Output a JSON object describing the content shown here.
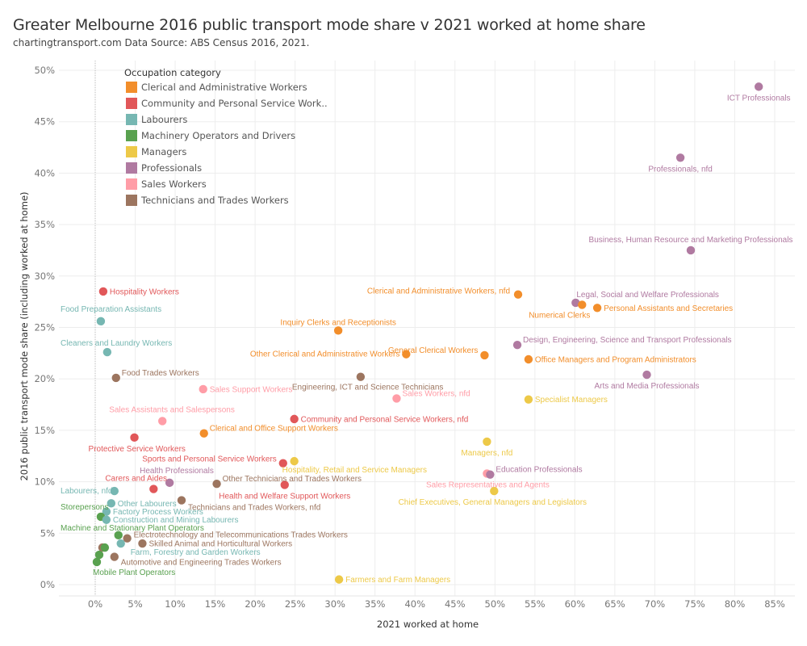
{
  "header": {
    "title": "Greater Melbourne 2016 public transport mode share v 2021 worked at home share",
    "subtitle": "chartingtransport.com  Data Source: ABS Census 2016, 2021."
  },
  "chart_data": {
    "type": "scatter",
    "title": "Greater Melbourne 2016 public transport mode share v 2021 worked at home share",
    "subtitle": "chartingtransport.com  Data Source: ABS Census 2016, 2021.",
    "xlabel": "2021 worked at home",
    "ylabel": "2016 public transport mode share (including worked at home)",
    "xlim": [
      -4.5,
      87.5
    ],
    "ylim": [
      -1,
      51
    ],
    "x_ticks": [
      0,
      5,
      10,
      15,
      20,
      25,
      30,
      35,
      40,
      45,
      50,
      55,
      60,
      65,
      70,
      75,
      80,
      85
    ],
    "x_tick_labels": [
      "0%",
      "5%",
      "10%",
      "15%",
      "20%",
      "25%",
      "30%",
      "35%",
      "40%",
      "45%",
      "50%",
      "55%",
      "60%",
      "65%",
      "70%",
      "75%",
      "80%",
      "85%"
    ],
    "y_ticks": [
      0,
      5,
      10,
      15,
      20,
      25,
      30,
      35,
      40,
      45,
      50
    ],
    "y_tick_labels": [
      "0%",
      "5%",
      "10%",
      "15%",
      "20%",
      "25%",
      "30%",
      "35%",
      "40%",
      "45%",
      "50%"
    ],
    "grid": true,
    "legend": {
      "title": "Occupation category",
      "placement": "top-left",
      "entries": [
        {
          "name": "Clerical and Administrative Workers",
          "label": "Clerical and Administrative Workers",
          "color": "#f28e2b"
        },
        {
          "name": "Community and Personal Service Workers",
          "label": "Community and Personal Service Work..",
          "color": "#e15759"
        },
        {
          "name": "Labourers",
          "label": "Labourers",
          "color": "#76b7b2"
        },
        {
          "name": "Machinery Operators and Drivers",
          "label": "Machinery Operators and Drivers",
          "color": "#59a14f"
        },
        {
          "name": "Managers",
          "label": "Managers",
          "color": "#edc948"
        },
        {
          "name": "Professionals",
          "label": "Professionals",
          "color": "#b07aa1"
        },
        {
          "name": "Sales Workers",
          "label": "Sales Workers",
          "color": "#ff9da7"
        },
        {
          "name": "Technicians and Trades Workers",
          "label": "Technicians and Trades Workers",
          "color": "#9c755f"
        }
      ]
    },
    "points": [
      {
        "label": "ICT Professionals",
        "category": "Professionals",
        "x": 83.0,
        "y": 48.4,
        "lpos": "below"
      },
      {
        "label": "Professionals, nfd",
        "category": "Professionals",
        "x": 73.2,
        "y": 41.5,
        "lpos": "below"
      },
      {
        "label": "Business, Human Resource and Marketing Professionals",
        "category": "Professionals",
        "x": 74.5,
        "y": 32.5,
        "lpos": "above"
      },
      {
        "label": "Clerical and Administrative Workers, nfd",
        "category": "Clerical and Administrative Workers",
        "x": 52.9,
        "y": 28.2,
        "lpos": "left-up"
      },
      {
        "label": "Legal, Social and Welfare Professionals",
        "category": "Professionals",
        "x": 60.1,
        "y": 27.4,
        "lpos": "right-up"
      },
      {
        "label": "Numerical Clerks",
        "category": "Clerical and Administrative Workers",
        "x": 60.9,
        "y": 27.2,
        "lpos": "below-left"
      },
      {
        "label": "Personal Assistants and Secretaries",
        "category": "Clerical and Administrative Workers",
        "x": 62.8,
        "y": 26.9,
        "lpos": "right"
      },
      {
        "label": "Inquiry Clerks and Receptionists",
        "category": "Clerical and Administrative Workers",
        "x": 30.4,
        "y": 24.7,
        "lpos": "above"
      },
      {
        "label": "Other Clerical and Administrative Workers",
        "category": "Clerical and Administrative Workers",
        "x": 38.9,
        "y": 22.4,
        "lpos": "left"
      },
      {
        "label": "General Clerical Workers",
        "category": "Clerical and Administrative Workers",
        "x": 48.7,
        "y": 22.3,
        "lpos": "left-up"
      },
      {
        "label": "Design, Engineering, Science and Transport Professionals",
        "category": "Professionals",
        "x": 52.8,
        "y": 23.3,
        "lpos": "right-up"
      },
      {
        "label": "Office Managers and Program Administrators",
        "category": "Clerical and Administrative Workers",
        "x": 54.2,
        "y": 21.9,
        "lpos": "right"
      },
      {
        "label": "Arts and Media Professionals",
        "category": "Professionals",
        "x": 69.0,
        "y": 20.4,
        "lpos": "below"
      },
      {
        "label": "Hospitality Workers",
        "category": "Community and Personal Service Workers",
        "x": 1.0,
        "y": 28.5,
        "lpos": "right"
      },
      {
        "label": "Food Preparation Assistants",
        "category": "Labourers",
        "x": 0.7,
        "y": 25.6,
        "lpos": "above"
      },
      {
        "label": "Cleaners and Laundry Workers",
        "category": "Labourers",
        "x": 1.5,
        "y": 22.6,
        "lpos": "above"
      },
      {
        "label": "Food Trades Workers",
        "category": "Technicians and Trades Workers",
        "x": 2.6,
        "y": 20.1,
        "lpos": "right-up"
      },
      {
        "label": "Sales Support Workers",
        "category": "Sales Workers",
        "x": 13.5,
        "y": 19.0,
        "lpos": "right"
      },
      {
        "label": "Engineering, ICT and Science Technicians",
        "category": "Technicians and Trades Workers",
        "x": 33.2,
        "y": 20.2,
        "lpos": "below"
      },
      {
        "label": "Sales Workers, nfd",
        "category": "Sales Workers",
        "x": 37.7,
        "y": 18.1,
        "lpos": "right-up"
      },
      {
        "label": "Specialist Managers",
        "category": "Managers",
        "x": 54.2,
        "y": 18.0,
        "lpos": "right"
      },
      {
        "label": "Sales Assistants and Salespersons",
        "category": "Sales Workers",
        "x": 8.4,
        "y": 15.9,
        "lpos": "above"
      },
      {
        "label": "Community and Personal Service Workers, nfd",
        "category": "Community and Personal Service Workers",
        "x": 24.9,
        "y": 16.1,
        "lpos": "right"
      },
      {
        "label": "Clerical and Office Support Workers",
        "category": "Clerical and Administrative Workers",
        "x": 13.6,
        "y": 14.7,
        "lpos": "right-up"
      },
      {
        "label": "Protective Service Workers",
        "category": "Community and Personal Service Workers",
        "x": 4.9,
        "y": 14.3,
        "lpos": "below"
      },
      {
        "label": "Managers, nfd",
        "category": "Managers",
        "x": 49.0,
        "y": 13.9,
        "lpos": "below"
      },
      {
        "label": "Sports and Personal Service Workers",
        "category": "Community and Personal Service Workers",
        "x": 23.5,
        "y": 11.8,
        "lpos": "left-up"
      },
      {
        "label": "Hospitality, Retail and Service Managers",
        "category": "Managers",
        "x": 24.9,
        "y": 12.0,
        "lpos": "below-right"
      },
      {
        "label": "Sales Representatives and Agents",
        "category": "Sales Workers",
        "x": 49.0,
        "y": 10.8,
        "lpos": "below"
      },
      {
        "label": "Education Professionals",
        "category": "Professionals",
        "x": 49.4,
        "y": 10.7,
        "lpos": "right-up"
      },
      {
        "label": "Health Professionals",
        "category": "Professionals",
        "x": 9.3,
        "y": 9.9,
        "lpos": "above"
      },
      {
        "label": "Carers and Aides",
        "category": "Community and Personal Service Workers",
        "x": 7.3,
        "y": 9.3,
        "lpos": "left-up"
      },
      {
        "label": "Other Technicians and Trades Workers",
        "category": "Technicians and Trades Workers",
        "x": 15.2,
        "y": 9.8,
        "lpos": "right-up"
      },
      {
        "label": "Health and Welfare Support Workers",
        "category": "Community and Personal Service Workers",
        "x": 23.7,
        "y": 9.7,
        "lpos": "below"
      },
      {
        "label": "Chief Executives, General Managers and Legislators",
        "category": "Managers",
        "x": 49.9,
        "y": 9.1,
        "lpos": "below"
      },
      {
        "label": "Labourers, nfd",
        "category": "Labourers",
        "x": 2.4,
        "y": 9.1,
        "lpos": "left"
      },
      {
        "label": "Technicians and Trades Workers, nfd",
        "category": "Technicians and Trades Workers",
        "x": 10.8,
        "y": 8.2,
        "lpos": "below-right"
      },
      {
        "label": "Other Labourers",
        "category": "Labourers",
        "x": 2.0,
        "y": 7.9,
        "lpos": "right"
      },
      {
        "label": "Factory Process Workers",
        "category": "Labourers",
        "x": 1.4,
        "y": 7.1,
        "lpos": "right"
      },
      {
        "label": "Storepersons",
        "category": "Machinery Operators and Drivers",
        "x": 0.7,
        "y": 6.6,
        "lpos": "left-up"
      },
      {
        "label": "Construction and Mining Labourers",
        "category": "Labourers",
        "x": 1.4,
        "y": 6.3,
        "lpos": "right"
      },
      {
        "label": "Machine and Stationary Plant Operators",
        "category": "Machinery Operators and Drivers",
        "x": 2.9,
        "y": 4.8,
        "lpos": "left-up"
      },
      {
        "label": "Electrotechnology and Telecommunications Trades Workers",
        "category": "Technicians and Trades Workers",
        "x": 4.0,
        "y": 4.5,
        "lpos": "right-up"
      },
      {
        "label": "Farm, Forestry and Garden Workers",
        "category": "Labourers",
        "x": 3.2,
        "y": 4.0,
        "lpos": "below-right"
      },
      {
        "label": "Skilled Animal and Horticultural Workers",
        "category": "Technicians and Trades Workers",
        "x": 5.9,
        "y": 4.0,
        "lpos": "right"
      },
      {
        "label": "Automotive and Engineering Trades Workers",
        "category": "Technicians and Trades Workers",
        "x": 2.4,
        "y": 2.7,
        "lpos": "below-right"
      },
      {
        "label": "Mobile Plant Operators",
        "category": "Machinery Operators and Drivers",
        "x": 0.2,
        "y": 2.2,
        "lpos": "below"
      },
      {
        "label": "",
        "category": "Technicians and Trades Workers",
        "x": 0.9,
        "y": 3.6,
        "lpos": "none"
      },
      {
        "label": "",
        "category": "Machinery Operators and Drivers",
        "x": 1.2,
        "y": 3.6,
        "lpos": "none"
      },
      {
        "label": "",
        "category": "Machinery Operators and Drivers",
        "x": 0.5,
        "y": 2.9,
        "lpos": "none"
      },
      {
        "label": "Farmers and Farm Managers",
        "category": "Managers",
        "x": 30.5,
        "y": 0.5,
        "lpos": "right"
      }
    ]
  }
}
